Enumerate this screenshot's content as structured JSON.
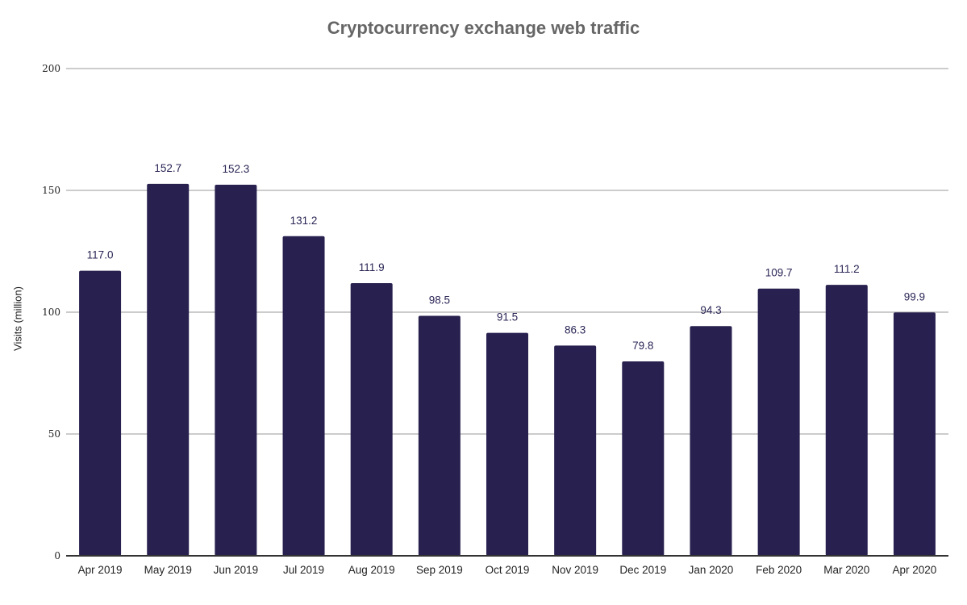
{
  "chart_data": {
    "type": "bar",
    "title": "Cryptocurrency exchange web traffic",
    "ylabel": "Visits (million)",
    "xlabel": "",
    "ylim": [
      0,
      200
    ],
    "yticks": [
      0,
      50,
      100,
      150,
      200
    ],
    "grid": true,
    "bar_color": "#28214f",
    "categories": [
      "Apr 2019",
      "May 2019",
      "Jun 2019",
      "Jul 2019",
      "Aug 2019",
      "Sep 2019",
      "Oct 2019",
      "Nov 2019",
      "Dec 2019",
      "Jan 2020",
      "Feb 2020",
      "Mar 2020",
      "Apr 2020"
    ],
    "values": [
      117.0,
      152.7,
      152.3,
      131.2,
      111.9,
      98.5,
      91.5,
      86.3,
      79.8,
      94.3,
      109.7,
      111.2,
      99.9
    ],
    "data_labels": [
      "117.0",
      "152.7",
      "152.3",
      "131.2",
      "111.9",
      "98.5",
      "91.5",
      "86.3",
      "79.8",
      "94.3",
      "109.7",
      "111.2",
      "99.9"
    ]
  }
}
